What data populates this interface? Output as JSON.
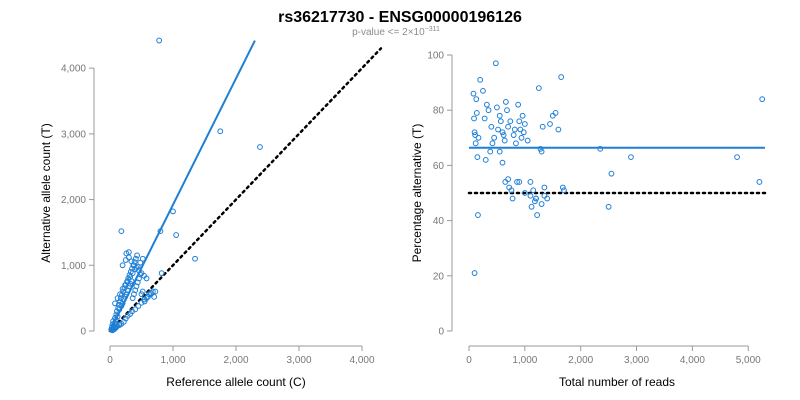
{
  "header": {
    "title": "rs36217730 - ENSG00000196126",
    "subtitle_prefix": "p-value <= 2×10",
    "subtitle_exponent": "−311"
  },
  "colors": {
    "accent": "#1e7fd6",
    "reference_line": "#000000",
    "axis": "#999999",
    "tick_text": "#777777"
  },
  "chart_data": [
    {
      "type": "scatter",
      "xlabel": "Reference allele count (C)",
      "ylabel": "Alternative allele count (T)",
      "xlim": [
        0,
        4000
      ],
      "ylim": [
        0,
        4200
      ],
      "xticks": [
        0,
        1000,
        2000,
        3000,
        4000
      ],
      "yticks": [
        0,
        1000,
        2000,
        3000,
        4000
      ],
      "xtick_labels": [
        "0",
        "1,000",
        "2,000",
        "3,000",
        "4,000"
      ],
      "ytick_labels": [
        "0",
        "1,000",
        "2,000",
        "3,000",
        "4,000"
      ],
      "grid": false,
      "points": [
        [
          20,
          20
        ],
        [
          30,
          60
        ],
        [
          40,
          100
        ],
        [
          50,
          150
        ],
        [
          60,
          80
        ],
        [
          70,
          120
        ],
        [
          80,
          200
        ],
        [
          90,
          170
        ],
        [
          100,
          250
        ],
        [
          110,
          300
        ],
        [
          120,
          220
        ],
        [
          130,
          350
        ],
        [
          140,
          400
        ],
        [
          150,
          330
        ],
        [
          160,
          450
        ],
        [
          170,
          500
        ],
        [
          180,
          380
        ],
        [
          190,
          550
        ],
        [
          200,
          420
        ],
        [
          210,
          600
        ],
        [
          220,
          480
        ],
        [
          230,
          650
        ],
        [
          240,
          520
        ],
        [
          250,
          700
        ],
        [
          260,
          560
        ],
        [
          270,
          750
        ],
        [
          280,
          620
        ],
        [
          290,
          800
        ],
        [
          300,
          680
        ],
        [
          310,
          850
        ],
        [
          320,
          720
        ],
        [
          330,
          900
        ],
        [
          340,
          760
        ],
        [
          350,
          950
        ],
        [
          360,
          500
        ],
        [
          370,
          1000
        ],
        [
          380,
          560
        ],
        [
          390,
          1050
        ],
        [
          400,
          620
        ],
        [
          410,
          1100
        ],
        [
          420,
          680
        ],
        [
          430,
          1150
        ],
        [
          440,
          740
        ],
        [
          460,
          800
        ],
        [
          480,
          860
        ],
        [
          500,
          560
        ],
        [
          520,
          600
        ],
        [
          550,
          450
        ],
        [
          580,
          500
        ],
        [
          600,
          520
        ],
        [
          620,
          560
        ],
        [
          650,
          580
        ],
        [
          680,
          600
        ],
        [
          700,
          520
        ],
        [
          720,
          600
        ],
        [
          30,
          20
        ],
        [
          50,
          40
        ],
        [
          70,
          30
        ],
        [
          90,
          50
        ],
        [
          110,
          70
        ],
        [
          150,
          90
        ],
        [
          180,
          110
        ],
        [
          220,
          140
        ],
        [
          250,
          190
        ],
        [
          280,
          230
        ],
        [
          320,
          260
        ],
        [
          350,
          300
        ],
        [
          400,
          330
        ],
        [
          450,
          380
        ],
        [
          500,
          430
        ],
        [
          550,
          480
        ],
        [
          600,
          520
        ],
        [
          650,
          560
        ],
        [
          40,
          10
        ],
        [
          60,
          30
        ],
        [
          80,
          40
        ],
        [
          100,
          60
        ],
        [
          140,
          100
        ],
        [
          180,
          1520
        ],
        [
          200,
          1000
        ],
        [
          250,
          1080
        ],
        [
          300,
          1200
        ],
        [
          780,
          4420
        ],
        [
          800,
          1520
        ],
        [
          820,
          880
        ],
        [
          1000,
          1820
        ],
        [
          1050,
          1460
        ],
        [
          1350,
          1100
        ],
        [
          1750,
          3040
        ],
        [
          2380,
          2800
        ],
        [
          80,
          420
        ],
        [
          120,
          500
        ],
        [
          160,
          560
        ],
        [
          200,
          640
        ],
        [
          240,
          700
        ],
        [
          280,
          760
        ],
        [
          320,
          820
        ],
        [
          360,
          880
        ],
        [
          400,
          940
        ],
        [
          440,
          980
        ],
        [
          480,
          1040
        ],
        [
          520,
          1100
        ],
        [
          260,
          1180
        ],
        [
          300,
          1120
        ],
        [
          340,
          1060
        ],
        [
          380,
          1000
        ],
        [
          420,
          960
        ],
        [
          460,
          920
        ],
        [
          500,
          880
        ],
        [
          540,
          840
        ],
        [
          580,
          800
        ]
      ],
      "fit_line": [
        [
          0,
          0
        ],
        [
          2300,
          4420
        ]
      ],
      "reference_line": [
        [
          0,
          0
        ],
        [
          4300,
          4300
        ]
      ]
    },
    {
      "type": "scatter",
      "xlabel": "Total number of reads",
      "ylabel": "Percentage alternative (T)",
      "xlim": [
        0,
        5300
      ],
      "ylim": [
        0,
        100
      ],
      "xticks": [
        0,
        1000,
        2000,
        3000,
        4000,
        5000
      ],
      "yticks": [
        0,
        20,
        40,
        60,
        80,
        100
      ],
      "xtick_labels": [
        "0",
        "1,000",
        "2,000",
        "3,000",
        "4,000",
        "5,000"
      ],
      "ytick_labels": [
        "0",
        "20",
        "40",
        "60",
        "80",
        "100"
      ],
      "grid": false,
      "points": [
        [
          80,
          86
        ],
        [
          90,
          77
        ],
        [
          100,
          72
        ],
        [
          110,
          71
        ],
        [
          120,
          68
        ],
        [
          130,
          84
        ],
        [
          140,
          79
        ],
        [
          150,
          63
        ],
        [
          160,
          42
        ],
        [
          170,
          70
        ],
        [
          200,
          91
        ],
        [
          250,
          87
        ],
        [
          280,
          77
        ],
        [
          300,
          62
        ],
        [
          320,
          82
        ],
        [
          350,
          80
        ],
        [
          380,
          65
        ],
        [
          400,
          74
        ],
        [
          420,
          68
        ],
        [
          450,
          70
        ],
        [
          480,
          97
        ],
        [
          500,
          81
        ],
        [
          520,
          73
        ],
        [
          550,
          78
        ],
        [
          570,
          76
        ],
        [
          600,
          72
        ],
        [
          620,
          71
        ],
        [
          640,
          69
        ],
        [
          650,
          54
        ],
        [
          660,
          83
        ],
        [
          680,
          80
        ],
        [
          700,
          74
        ],
        [
          720,
          52
        ],
        [
          740,
          76
        ],
        [
          760,
          51
        ],
        [
          780,
          48
        ],
        [
          800,
          71
        ],
        [
          820,
          73
        ],
        [
          840,
          68
        ],
        [
          860,
          54
        ],
        [
          880,
          82
        ],
        [
          900,
          76
        ],
        [
          920,
          73
        ],
        [
          940,
          70
        ],
        [
          960,
          78
        ],
        [
          980,
          72
        ],
        [
          1000,
          75
        ],
        [
          1050,
          69
        ],
        [
          1100,
          49
        ],
        [
          1120,
          45
        ],
        [
          1150,
          51
        ],
        [
          1180,
          47
        ],
        [
          1200,
          48
        ],
        [
          1220,
          42
        ],
        [
          1250,
          88
        ],
        [
          1280,
          66
        ],
        [
          1300,
          65
        ],
        [
          1320,
          74
        ],
        [
          1350,
          52
        ],
        [
          1400,
          48
        ],
        [
          1450,
          75
        ],
        [
          1500,
          78
        ],
        [
          1550,
          79
        ],
        [
          1600,
          73
        ],
        [
          1650,
          92
        ],
        [
          1680,
          52
        ],
        [
          1700,
          51
        ],
        [
          2350,
          66
        ],
        [
          2500,
          45
        ],
        [
          2550,
          57
        ],
        [
          2900,
          63
        ],
        [
          4800,
          63
        ],
        [
          5200,
          54
        ],
        [
          5250,
          84
        ],
        [
          100,
          21
        ],
        [
          550,
          65
        ],
        [
          600,
          61
        ],
        [
          700,
          55
        ],
        [
          1000,
          50
        ],
        [
          1100,
          54
        ],
        [
          1200,
          48
        ],
        [
          1300,
          46
        ],
        [
          1350,
          49
        ],
        [
          900,
          54
        ]
      ],
      "fit_line": [
        [
          0,
          66.4
        ],
        [
          5300,
          66.4
        ]
      ],
      "reference_line": [
        [
          0,
          50
        ],
        [
          5300,
          50
        ]
      ]
    }
  ]
}
